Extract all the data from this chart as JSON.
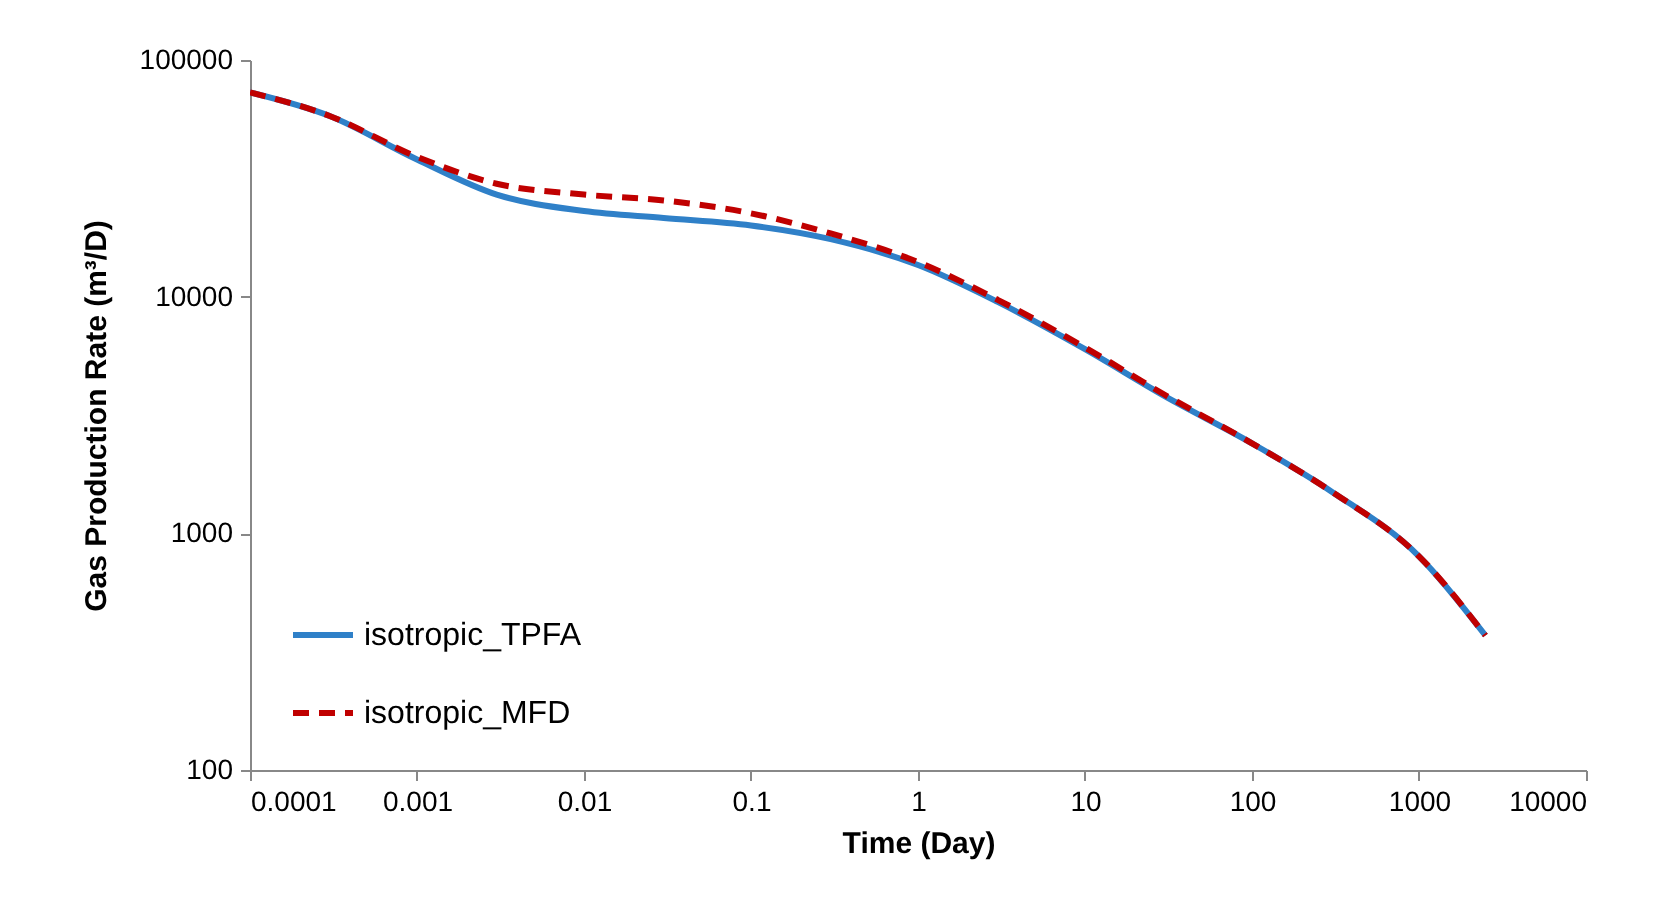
{
  "chart_data": {
    "type": "line",
    "xlabel": "Time (Day)",
    "ylabel": "Gas Production Rate (m³/D)",
    "x": [
      0.0001,
      0.0003,
      0.001,
      0.003,
      0.01,
      0.03,
      0.1,
      0.3,
      1,
      3,
      10,
      30,
      100,
      300,
      1000,
      2500
    ],
    "series": [
      {
        "name": "isotropic_TPFA",
        "color": "#2f80c8",
        "line_style": "solid",
        "values": [
          73000,
          58000,
          38000,
          27000,
          23000,
          21500,
          20000,
          17500,
          13600,
          9500,
          6000,
          3800,
          2400,
          1500,
          800,
          370
        ]
      },
      {
        "name": "isotropic_MFD",
        "color": "#c00000",
        "line_style": "dashed",
        "values": [
          73000,
          58000,
          39000,
          30000,
          27000,
          25500,
          22500,
          18500,
          14000,
          9700,
          6100,
          3850,
          2400,
          1500,
          800,
          370
        ]
      }
    ],
    "log": "xy",
    "xlim": [
      0.0001,
      10000
    ],
    "ylim": [
      100,
      100000
    ],
    "xticks": [
      0.0001,
      0.001,
      0.01,
      0.1,
      1,
      10,
      100,
      1000,
      10000
    ],
    "yticks": [
      100,
      1000,
      10000,
      100000
    ],
    "grid": false,
    "legend": "bottom left",
    "marker": "none"
  }
}
